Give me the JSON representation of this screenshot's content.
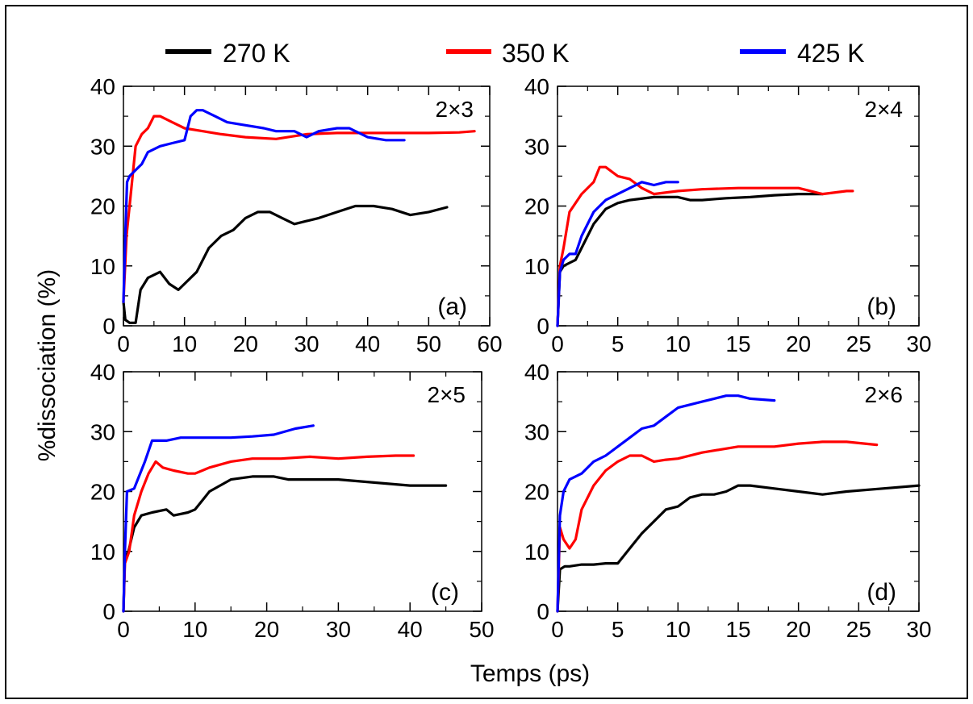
{
  "figure": {
    "xlabel": "Temps (ps)",
    "ylabel": "%dissociation (%)"
  },
  "legend": [
    {
      "label": "270 K",
      "color": "#000000"
    },
    {
      "label": "350 K",
      "color": "#ff0000"
    },
    {
      "label": "425 K",
      "color": "#0000ff"
    }
  ],
  "chart_data": [
    {
      "type": "line",
      "panel": "(a)",
      "tag": "2×3",
      "xlim": [
        0,
        60
      ],
      "ylim": [
        0,
        40
      ],
      "xticks": [
        0,
        10,
        20,
        30,
        40,
        50,
        60
      ],
      "yticks": [
        0,
        10,
        20,
        30,
        40
      ],
      "series": [
        {
          "name": "270 K",
          "color": "#000000",
          "points": [
            [
              0,
              4
            ],
            [
              0.3,
              1
            ],
            [
              1,
              0.5
            ],
            [
              2,
              0.5
            ],
            [
              2.8,
              6
            ],
            [
              4,
              8
            ],
            [
              6,
              9
            ],
            [
              7.5,
              7
            ],
            [
              9,
              6
            ],
            [
              10,
              7
            ],
            [
              12,
              9
            ],
            [
              14,
              13
            ],
            [
              16,
              15
            ],
            [
              18,
              16
            ],
            [
              20,
              18
            ],
            [
              22,
              19
            ],
            [
              24,
              19
            ],
            [
              26,
              18
            ],
            [
              28,
              17
            ],
            [
              30,
              17.5
            ],
            [
              32,
              18
            ],
            [
              35,
              19
            ],
            [
              38,
              20
            ],
            [
              41,
              20
            ],
            [
              44,
              19.5
            ],
            [
              47,
              18.5
            ],
            [
              50,
              19
            ],
            [
              53,
              19.8
            ]
          ]
        },
        {
          "name": "350 K",
          "color": "#ff0000",
          "points": [
            [
              0,
              4
            ],
            [
              0.5,
              15
            ],
            [
              1,
              20
            ],
            [
              2,
              30
            ],
            [
              3,
              32
            ],
            [
              4,
              33
            ],
            [
              5,
              35
            ],
            [
              6,
              35
            ],
            [
              8,
              34
            ],
            [
              10,
              33
            ],
            [
              13,
              32.5
            ],
            [
              16,
              32
            ],
            [
              20,
              31.5
            ],
            [
              25,
              31.2
            ],
            [
              30,
              32
            ],
            [
              35,
              32.2
            ],
            [
              40,
              32.2
            ],
            [
              45,
              32.2
            ],
            [
              50,
              32.2
            ],
            [
              55,
              32.3
            ],
            [
              57.5,
              32.5
            ]
          ]
        },
        {
          "name": "425 K",
          "color": "#0000ff",
          "points": [
            [
              0,
              4
            ],
            [
              0.3,
              15
            ],
            [
              0.6,
              24
            ],
            [
              1,
              25
            ],
            [
              2,
              26
            ],
            [
              3,
              27
            ],
            [
              4,
              29
            ],
            [
              6,
              30
            ],
            [
              8,
              30.5
            ],
            [
              10,
              31
            ],
            [
              11,
              35
            ],
            [
              12,
              36
            ],
            [
              13,
              36
            ],
            [
              15,
              35
            ],
            [
              17,
              34
            ],
            [
              20,
              33.5
            ],
            [
              23,
              33
            ],
            [
              25,
              32.5
            ],
            [
              28,
              32.5
            ],
            [
              30,
              31.5
            ],
            [
              32,
              32.5
            ],
            [
              35,
              33
            ],
            [
              37,
              33
            ],
            [
              40,
              31.5
            ],
            [
              43,
              31
            ],
            [
              46,
              31
            ]
          ]
        }
      ]
    },
    {
      "type": "line",
      "panel": "(b)",
      "tag": "2×4",
      "xlim": [
        0,
        30
      ],
      "ylim": [
        0,
        40
      ],
      "xticks": [
        0,
        5,
        10,
        15,
        20,
        25,
        30
      ],
      "yticks": [
        0,
        10,
        20,
        30,
        40
      ],
      "series": [
        {
          "name": "270 K",
          "color": "#000000",
          "points": [
            [
              0,
              0
            ],
            [
              0.2,
              9
            ],
            [
              0.5,
              10
            ],
            [
              1,
              10.5
            ],
            [
              1.5,
              11
            ],
            [
              2,
              13
            ],
            [
              3,
              17
            ],
            [
              4,
              19.5
            ],
            [
              5,
              20.5
            ],
            [
              6,
              21
            ],
            [
              8,
              21.5
            ],
            [
              10,
              21.5
            ],
            [
              11,
              21
            ],
            [
              12,
              21
            ],
            [
              14,
              21.3
            ],
            [
              16,
              21.5
            ],
            [
              18,
              21.8
            ],
            [
              20,
              22
            ],
            [
              22,
              22
            ]
          ]
        },
        {
          "name": "350 K",
          "color": "#ff0000",
          "points": [
            [
              0,
              0
            ],
            [
              0.2,
              10
            ],
            [
              0.5,
              13
            ],
            [
              1,
              19
            ],
            [
              2,
              22
            ],
            [
              3,
              24
            ],
            [
              3.5,
              26.5
            ],
            [
              4,
              26.5
            ],
            [
              5,
              25
            ],
            [
              6,
              24.5
            ],
            [
              7,
              23
            ],
            [
              8,
              22
            ],
            [
              10,
              22.5
            ],
            [
              12,
              22.8
            ],
            [
              15,
              23
            ],
            [
              18,
              23
            ],
            [
              20,
              23
            ],
            [
              22,
              22
            ],
            [
              24,
              22.5
            ],
            [
              24.5,
              22.5
            ]
          ]
        },
        {
          "name": "425 K",
          "color": "#0000ff",
          "points": [
            [
              0,
              0
            ],
            [
              0.2,
              9
            ],
            [
              0.5,
              11
            ],
            [
              1,
              12
            ],
            [
              1.5,
              12
            ],
            [
              2,
              15
            ],
            [
              3,
              19
            ],
            [
              4,
              21
            ],
            [
              5,
              22
            ],
            [
              6,
              23
            ],
            [
              7,
              24
            ],
            [
              8,
              23.5
            ],
            [
              9,
              24
            ],
            [
              10,
              24
            ]
          ]
        }
      ]
    },
    {
      "type": "line",
      "panel": "(c)",
      "tag": "2×5",
      "xlim": [
        0,
        50
      ],
      "ylim": [
        0,
        40
      ],
      "xticks": [
        0,
        10,
        20,
        30,
        40,
        50
      ],
      "yticks": [
        0,
        10,
        20,
        30,
        40
      ],
      "series": [
        {
          "name": "270 K",
          "color": "#000000",
          "points": [
            [
              0,
              0
            ],
            [
              0.2,
              9
            ],
            [
              0.7,
              10
            ],
            [
              1.5,
              14
            ],
            [
              2.5,
              16
            ],
            [
              4,
              16.5
            ],
            [
              6,
              17
            ],
            [
              7,
              16
            ],
            [
              9,
              16.5
            ],
            [
              10,
              17
            ],
            [
              12,
              20
            ],
            [
              15,
              22
            ],
            [
              18,
              22.5
            ],
            [
              21,
              22.5
            ],
            [
              23,
              22
            ],
            [
              26,
              22
            ],
            [
              30,
              22
            ],
            [
              35,
              21.5
            ],
            [
              40,
              21
            ],
            [
              45,
              21
            ]
          ]
        },
        {
          "name": "350 K",
          "color": "#ff0000",
          "points": [
            [
              0,
              0
            ],
            [
              0.2,
              8
            ],
            [
              0.8,
              10
            ],
            [
              1.5,
              16
            ],
            [
              2.5,
              20
            ],
            [
              3.5,
              23
            ],
            [
              4.5,
              25
            ],
            [
              5.5,
              24
            ],
            [
              7,
              23.5
            ],
            [
              9,
              23
            ],
            [
              10,
              23
            ],
            [
              12,
              24
            ],
            [
              15,
              25
            ],
            [
              18,
              25.5
            ],
            [
              22,
              25.5
            ],
            [
              26,
              25.8
            ],
            [
              30,
              25.5
            ],
            [
              34,
              25.8
            ],
            [
              38,
              26
            ],
            [
              40.5,
              26
            ]
          ]
        },
        {
          "name": "425 K",
          "color": "#0000ff",
          "points": [
            [
              0,
              0
            ],
            [
              0.2,
              10
            ],
            [
              0.5,
              20
            ],
            [
              1.5,
              20.5
            ],
            [
              3,
              25
            ],
            [
              4,
              28.5
            ],
            [
              6,
              28.5
            ],
            [
              8,
              29
            ],
            [
              10,
              29
            ],
            [
              12,
              29
            ],
            [
              15,
              29
            ],
            [
              18,
              29.2
            ],
            [
              21,
              29.5
            ],
            [
              24,
              30.5
            ],
            [
              26.5,
              31
            ]
          ]
        }
      ]
    },
    {
      "type": "line",
      "panel": "(d)",
      "tag": "2×6",
      "xlim": [
        0,
        30
      ],
      "ylim": [
        0,
        40
      ],
      "xticks": [
        0,
        5,
        10,
        15,
        20,
        25,
        30
      ],
      "yticks": [
        0,
        10,
        20,
        30,
        40
      ],
      "series": [
        {
          "name": "270 K",
          "color": "#000000",
          "points": [
            [
              0,
              0
            ],
            [
              0.2,
              7
            ],
            [
              0.6,
              7.5
            ],
            [
              1,
              7.5
            ],
            [
              2,
              7.8
            ],
            [
              3,
              7.8
            ],
            [
              4,
              8
            ],
            [
              5,
              8
            ],
            [
              6,
              10.5
            ],
            [
              7,
              13
            ],
            [
              8,
              15
            ],
            [
              9,
              17
            ],
            [
              10,
              17.5
            ],
            [
              11,
              19
            ],
            [
              12,
              19.5
            ],
            [
              13,
              19.5
            ],
            [
              14,
              20
            ],
            [
              15,
              21
            ],
            [
              16,
              21
            ],
            [
              18,
              20.5
            ],
            [
              20,
              20
            ],
            [
              22,
              19.5
            ],
            [
              24,
              20
            ],
            [
              27,
              20.5
            ],
            [
              30,
              21
            ]
          ]
        },
        {
          "name": "350 K",
          "color": "#ff0000",
          "points": [
            [
              0,
              0
            ],
            [
              0.2,
              14
            ],
            [
              0.5,
              12
            ],
            [
              1,
              10.5
            ],
            [
              1.5,
              12
            ],
            [
              2,
              17
            ],
            [
              3,
              21
            ],
            [
              4,
              23.5
            ],
            [
              5,
              25
            ],
            [
              6,
              26
            ],
            [
              7,
              26
            ],
            [
              8,
              25
            ],
            [
              9,
              25.3
            ],
            [
              10,
              25.5
            ],
            [
              12,
              26.5
            ],
            [
              15,
              27.5
            ],
            [
              18,
              27.5
            ],
            [
              20,
              28
            ],
            [
              22,
              28.3
            ],
            [
              24,
              28.3
            ],
            [
              26.5,
              27.8
            ]
          ]
        },
        {
          "name": "425 K",
          "color": "#0000ff",
          "points": [
            [
              0,
              0
            ],
            [
              0.2,
              16
            ],
            [
              0.5,
              20
            ],
            [
              1,
              22
            ],
            [
              2,
              23
            ],
            [
              3,
              25
            ],
            [
              4,
              26
            ],
            [
              5,
              27.5
            ],
            [
              6,
              29
            ],
            [
              7,
              30.5
            ],
            [
              8,
              31
            ],
            [
              9,
              32.5
            ],
            [
              10,
              34
            ],
            [
              11,
              34.5
            ],
            [
              12,
              35
            ],
            [
              13,
              35.5
            ],
            [
              14,
              36
            ],
            [
              15,
              36
            ],
            [
              16,
              35.5
            ],
            [
              18,
              35.2
            ]
          ]
        }
      ]
    }
  ]
}
